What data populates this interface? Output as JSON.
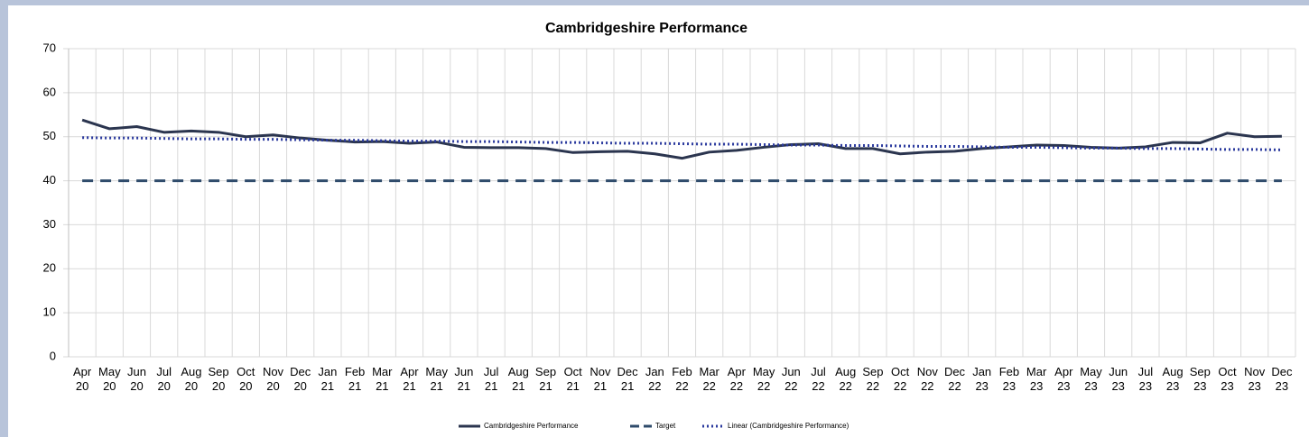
{
  "chart_data": {
    "type": "line",
    "title": "Cambridgeshire Performance",
    "categories": [
      "Apr 20",
      "May 20",
      "Jun 20",
      "Jul 20",
      "Aug 20",
      "Sep 20",
      "Oct 20",
      "Nov 20",
      "Dec 20",
      "Jan 21",
      "Feb 21",
      "Mar 21",
      "Apr 21",
      "May 21",
      "Jun 21",
      "Jul 21",
      "Aug 21",
      "Sep 21",
      "Oct 21",
      "Nov 21",
      "Dec 21",
      "Jan 22",
      "Feb 22",
      "Mar 22",
      "Apr 22",
      "May 22",
      "Jun 22",
      "Jul 22",
      "Aug 22",
      "Sep 22",
      "Oct 22",
      "Nov 22",
      "Dec 22",
      "Jan 23",
      "Feb 23",
      "Mar 23",
      "Apr 23",
      "May 23",
      "Jun 23",
      "Jul 23",
      "Aug 23",
      "Sep 23",
      "Oct 23",
      "Nov 23",
      "Dec 23"
    ],
    "series": [
      {
        "name": "Cambridgeshire Performance",
        "color": "#2b354f",
        "dash": "solid",
        "values": [
          53.8,
          51.8,
          52.3,
          51,
          51.3,
          51,
          50,
          50.4,
          49.7,
          49.2,
          48.8,
          48.9,
          48.5,
          48.8,
          47.6,
          47.5,
          47.5,
          47.3,
          46.4,
          46.6,
          46.7,
          46.1,
          45.1,
          46.5,
          46.9,
          47.6,
          48.2,
          48.4,
          47.3,
          47.3,
          46.1,
          46.5,
          46.7,
          47.3,
          47.7,
          48.1,
          48,
          47.6,
          47.4,
          47.7,
          48.7,
          48.6,
          50.8,
          50,
          50.1
        ]
      },
      {
        "name": "Target",
        "color": "#2f4b6b",
        "dash": "dashed",
        "values": [
          40,
          40,
          40,
          40,
          40,
          40,
          40,
          40,
          40,
          40,
          40,
          40,
          40,
          40,
          40,
          40,
          40,
          40,
          40,
          40,
          40,
          40,
          40,
          40,
          40,
          40,
          40,
          40,
          40,
          40,
          40,
          40,
          40,
          40,
          40,
          40,
          40,
          40,
          40,
          40,
          40,
          40,
          40,
          40,
          40
        ]
      },
      {
        "name": "Linear (Cambridgeshire Performance)",
        "color": "#2b3a9e",
        "dash": "dotted",
        "values": [
          49.8,
          49.7,
          49.7,
          49.6,
          49.5,
          49.5,
          49.4,
          49.4,
          49.3,
          49.2,
          49.2,
          49.1,
          49.0,
          49.0,
          48.9,
          48.9,
          48.8,
          48.7,
          48.7,
          48.6,
          48.5,
          48.5,
          48.4,
          48.3,
          48.3,
          48.2,
          48.1,
          48.1,
          48.0,
          48.0,
          47.9,
          47.8,
          47.8,
          47.7,
          47.6,
          47.6,
          47.5,
          47.4,
          47.4,
          47.3,
          47.3,
          47.2,
          47.1,
          47.1,
          47.0
        ]
      }
    ],
    "ylim": [
      0,
      70
    ],
    "yticks": [
      0,
      10,
      20,
      30,
      40,
      50,
      60,
      70
    ],
    "grid": true,
    "legend": "bottom"
  }
}
